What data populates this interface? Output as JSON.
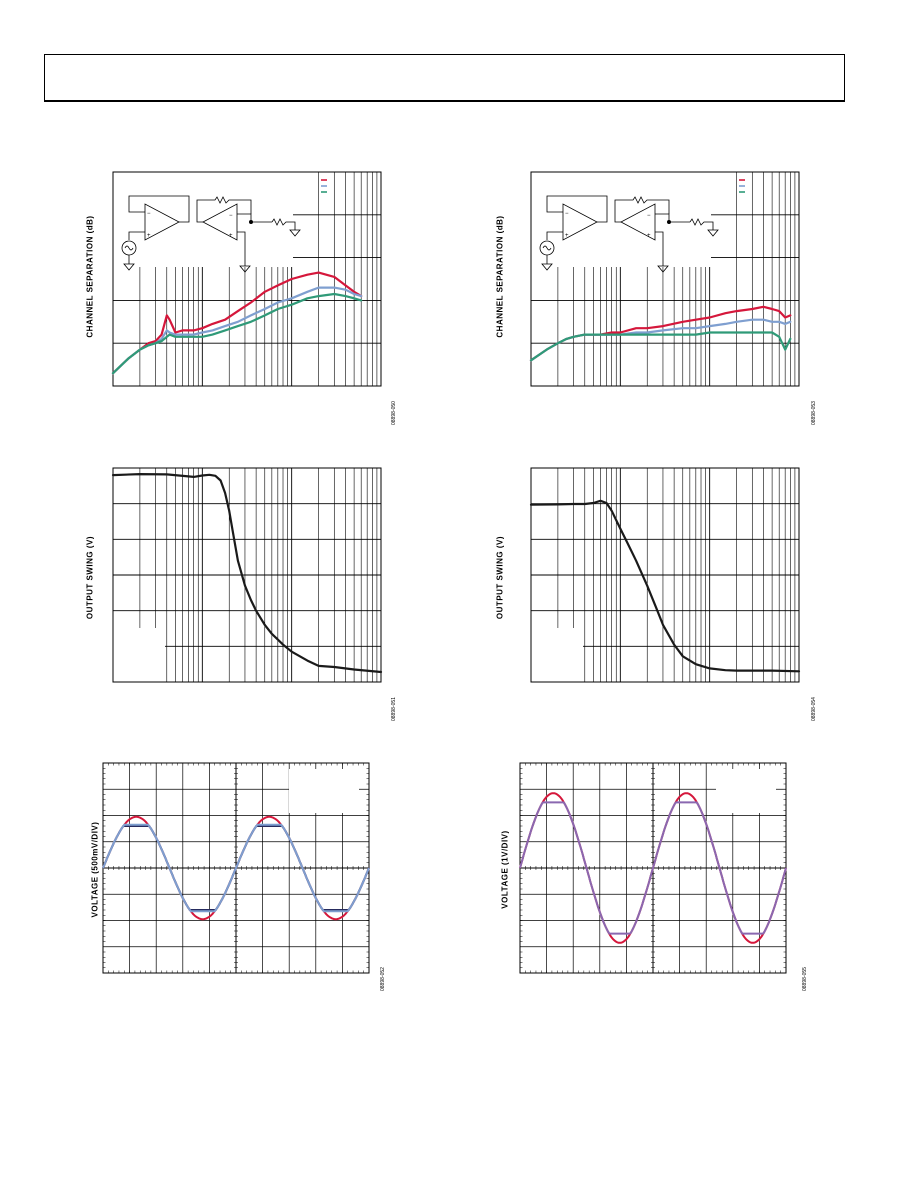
{
  "colors": {
    "red": "#d5173b",
    "blue": "#7f9fd0",
    "green": "#2f9a78",
    "purple": "#8a68b0",
    "dark": "#262b5e",
    "black": "#1a1a1a"
  },
  "figures": [
    {
      "id": "f1",
      "ylabel": "CHANNEL SEPARATION (dB)",
      "code": "08898-050"
    },
    {
      "id": "f2",
      "ylabel": "CHANNEL SEPARATION (dB)",
      "code": "08898-053"
    },
    {
      "id": "f3",
      "ylabel": "OUTPUT SWING (V)",
      "code": "08898-051"
    },
    {
      "id": "f4",
      "ylabel": "OUTPUT SWING (V)",
      "code": "08898-054"
    },
    {
      "id": "f5",
      "ylabel": "VOLTAGE (500mV/DIV)",
      "code": "08898-052"
    },
    {
      "id": "f6",
      "ylabel": "VOLTAGE (1V/DIV)",
      "code": "08898-055"
    }
  ],
  "chart_data": [
    {
      "type": "line",
      "id": "f1",
      "title": "",
      "xlabel": "",
      "ylabel": "CHANNEL SEPARATION (dB)",
      "xscale": "log",
      "xlim": [
        1,
        1000
      ],
      "ylim": [
        0,
        100
      ],
      "grid": true,
      "legend": "top-right",
      "series": [
        {
          "color": "red",
          "x": [
            1,
            1.5,
            2,
            2.5,
            3,
            3.5,
            4,
            4.3,
            5,
            6,
            8,
            10,
            13,
            18,
            25,
            35,
            50,
            70,
            100,
            150,
            200,
            300,
            400,
            500,
            600
          ],
          "y": [
            6,
            13,
            17,
            20,
            21,
            24,
            33,
            31,
            25,
            26,
            26,
            27,
            29,
            31,
            35,
            39,
            44,
            47,
            50,
            52,
            53,
            51,
            47,
            44,
            42
          ]
        },
        {
          "color": "blue",
          "x": [
            1,
            1.5,
            2,
            2.5,
            3,
            3.5,
            4,
            4.3,
            5,
            6,
            8,
            10,
            13,
            18,
            25,
            35,
            50,
            70,
            100,
            150,
            200,
            300,
            400,
            500,
            600
          ],
          "y": [
            6,
            13,
            17,
            19,
            20,
            22,
            26,
            25,
            24,
            24,
            24,
            25,
            26,
            28,
            30,
            33,
            36,
            39,
            41,
            44,
            46,
            46,
            45,
            43,
            42
          ]
        },
        {
          "color": "green",
          "x": [
            1,
            1.5,
            2,
            2.5,
            3,
            3.5,
            4,
            4.3,
            5,
            6,
            8,
            10,
            13,
            18,
            25,
            35,
            50,
            70,
            100,
            150,
            200,
            300,
            400,
            500,
            600
          ],
          "y": [
            6,
            13,
            17,
            19,
            20,
            21,
            23,
            24,
            23,
            23,
            23,
            23,
            24,
            26,
            28,
            30,
            33,
            36,
            38,
            41,
            42,
            43,
            42,
            41,
            40
          ]
        }
      ]
    },
    {
      "type": "line",
      "id": "f2",
      "title": "",
      "xlabel": "",
      "ylabel": "CHANNEL SEPARATION (dB)",
      "xscale": "log",
      "xlim": [
        1,
        1000
      ],
      "ylim": [
        0,
        100
      ],
      "grid": true,
      "legend": "top-right",
      "series": [
        {
          "color": "red",
          "x": [
            1,
            1.5,
            2,
            2.5,
            3,
            4,
            5,
            6,
            8,
            10,
            15,
            20,
            30,
            50,
            70,
            100,
            150,
            200,
            300,
            400,
            500,
            600,
            700,
            800
          ],
          "y": [
            12,
            17,
            20,
            22,
            23,
            24,
            24,
            24,
            25,
            25,
            27,
            27,
            28,
            30,
            31,
            32,
            34,
            35,
            36,
            37,
            36,
            35,
            32,
            33
          ]
        },
        {
          "color": "blue",
          "x": [
            1,
            1.5,
            2,
            2.5,
            3,
            4,
            5,
            6,
            8,
            10,
            15,
            20,
            30,
            50,
            70,
            100,
            150,
            200,
            300,
            400,
            500,
            600,
            700,
            800
          ],
          "y": [
            12,
            17,
            20,
            22,
            23,
            24,
            24,
            24,
            24,
            24,
            25,
            25,
            26,
            27,
            27,
            28,
            29,
            30,
            31,
            31,
            30,
            30,
            29,
            30
          ]
        },
        {
          "color": "green",
          "x": [
            1,
            1.5,
            2,
            2.5,
            3,
            4,
            5,
            6,
            8,
            10,
            15,
            20,
            30,
            50,
            70,
            100,
            150,
            200,
            300,
            400,
            500,
            600,
            700,
            800
          ],
          "y": [
            12,
            17,
            20,
            22,
            23,
            24,
            24,
            24,
            24,
            24,
            24,
            24,
            24,
            24,
            24,
            25,
            25,
            25,
            25,
            25,
            25,
            23,
            17,
            22
          ]
        }
      ]
    },
    {
      "type": "line",
      "id": "f3",
      "title": "",
      "xlabel": "",
      "ylabel": "OUTPUT SWING (V)",
      "xscale": "log",
      "xlim": [
        1,
        1000
      ],
      "ylim": [
        0,
        6
      ],
      "grid": true,
      "series": [
        {
          "color": "black",
          "x": [
            1,
            2,
            4,
            8,
            10,
            12,
            14,
            16,
            18,
            20,
            22,
            25,
            30,
            35,
            40,
            50,
            60,
            80,
            100,
            150,
            200,
            300,
            500,
            1000
          ],
          "y": [
            5.8,
            5.83,
            5.82,
            5.75,
            5.79,
            5.81,
            5.78,
            5.65,
            5.3,
            4.8,
            4.2,
            3.4,
            2.7,
            2.3,
            2.0,
            1.6,
            1.35,
            1.05,
            0.85,
            0.6,
            0.45,
            0.42,
            0.35,
            0.28
          ]
        }
      ]
    },
    {
      "type": "line",
      "id": "f4",
      "title": "",
      "xlabel": "",
      "ylabel": "OUTPUT SWING (V)",
      "xscale": "log",
      "xlim": [
        1,
        1000
      ],
      "ylim": [
        0,
        6
      ],
      "grid": true,
      "series": [
        {
          "color": "black",
          "x": [
            1,
            2,
            3,
            4,
            5,
            6,
            7,
            8,
            10,
            12,
            15,
            20,
            25,
            30,
            40,
            50,
            70,
            100,
            150,
            200,
            300,
            500,
            1000
          ],
          "y": [
            4.97,
            4.98,
            4.99,
            4.99,
            5.02,
            5.08,
            5.02,
            4.8,
            4.3,
            3.9,
            3.4,
            2.7,
            2.1,
            1.6,
            1.05,
            0.72,
            0.5,
            0.38,
            0.33,
            0.32,
            0.32,
            0.32,
            0.3
          ]
        }
      ]
    },
    {
      "type": "line",
      "id": "f5",
      "title": "",
      "xlabel": "",
      "ylabel": "VOLTAGE (500mV/DIV)",
      "xlim": [
        0,
        10
      ],
      "ylim": [
        -4,
        4
      ],
      "grid": true,
      "series": [
        {
          "color": "red",
          "shape": "sine",
          "amplitude": 1.95,
          "period": 5,
          "clip": null
        },
        {
          "color": "dark",
          "shape": "sine",
          "amplitude": 1.95,
          "period": 5,
          "clip": 1.6
        },
        {
          "color": "blue",
          "shape": "sine",
          "amplitude": 1.95,
          "period": 5,
          "clip": 1.65
        }
      ]
    },
    {
      "type": "line",
      "id": "f6",
      "title": "",
      "xlabel": "",
      "ylabel": "VOLTAGE (1V/DIV)",
      "xlim": [
        0,
        10
      ],
      "ylim": [
        -4,
        4
      ],
      "grid": true,
      "series": [
        {
          "color": "red",
          "shape": "sine",
          "amplitude": 2.85,
          "period": 5,
          "clip": null
        },
        {
          "color": "purple",
          "shape": "sine",
          "amplitude": 2.85,
          "period": 5,
          "clip": 2.5
        }
      ]
    }
  ]
}
